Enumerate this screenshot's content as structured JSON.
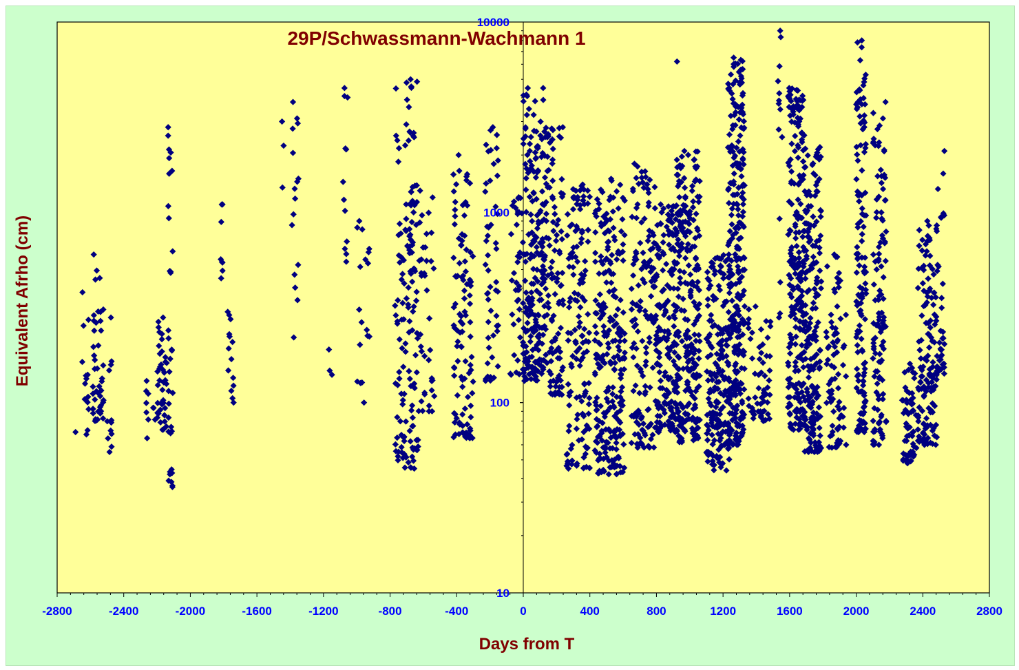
{
  "chart_data": {
    "type": "scatter",
    "title": "29P/Schwassmann-Wachmann  1",
    "xlabel": "Days from T",
    "ylabel": "Equivalent Afrho (cm)",
    "xlim": [
      -2800,
      2800
    ],
    "ylim": [
      10,
      10000
    ],
    "y_scale": "log",
    "x_ticks": [
      -2800,
      -2400,
      -2000,
      -1600,
      -1200,
      -800,
      -400,
      0,
      400,
      800,
      1200,
      1600,
      2000,
      2400,
      2800
    ],
    "y_ticks": [
      10,
      100,
      1000,
      10000
    ],
    "grid": false,
    "legend": "none",
    "marker": "diamond",
    "colors": {
      "plot_background": "#ffff99",
      "chart_background": "#ccffcc",
      "marker": "#000080",
      "title_text": "#800000",
      "axis_label_text": "#800000",
      "tick_label_text": "#0000ff"
    },
    "series": [
      {
        "clusters": [
          {
            "x": -2680,
            "x_spread": 10,
            "y_min": 70,
            "y_max": 70,
            "n": 1
          },
          {
            "x": -2630,
            "x_spread": 20,
            "y_min": 68,
            "y_max": 380,
            "n": 14
          },
          {
            "x": -2555,
            "x_spread": 35,
            "y_min": 80,
            "y_max": 600,
            "n": 45
          },
          {
            "x": -2485,
            "x_spread": 15,
            "y_min": 55,
            "y_max": 280,
            "n": 12
          },
          {
            "x": -2240,
            "x_spread": 30,
            "y_min": 65,
            "y_max": 130,
            "n": 10
          },
          {
            "x": -2170,
            "x_spread": 30,
            "y_min": 72,
            "y_max": 280,
            "n": 40
          },
          {
            "x": -2120,
            "x_spread": 15,
            "y_min": 36,
            "y_max": 2800,
            "n": 35
          },
          {
            "x": -1810,
            "x_spread": 12,
            "y_min": 450,
            "y_max": 1100,
            "n": 8
          },
          {
            "x": -1760,
            "x_spread": 20,
            "y_min": 100,
            "y_max": 300,
            "n": 14
          },
          {
            "x": -1440,
            "x_spread": 10,
            "y_min": 1350,
            "y_max": 3000,
            "n": 3
          },
          {
            "x": -1370,
            "x_spread": 20,
            "y_min": 220,
            "y_max": 3800,
            "n": 16
          },
          {
            "x": -1150,
            "x_spread": 20,
            "y_min": 140,
            "y_max": 190,
            "n": 3
          },
          {
            "x": -1070,
            "x_spread": 15,
            "y_min": 550,
            "y_max": 4500,
            "n": 12
          },
          {
            "x": -960,
            "x_spread": 40,
            "y_min": 100,
            "y_max": 900,
            "n": 18
          },
          {
            "x": -700,
            "x_spread": 70,
            "y_min": 45,
            "y_max": 5000,
            "n": 150
          },
          {
            "x": -580,
            "x_spread": 50,
            "y_min": 90,
            "y_max": 1300,
            "n": 40
          },
          {
            "x": -360,
            "x_spread": 60,
            "y_min": 65,
            "y_max": 2000,
            "n": 110
          },
          {
            "x": -190,
            "x_spread": 40,
            "y_min": 130,
            "y_max": 2800,
            "n": 50
          },
          {
            "x": -40,
            "x_spread": 40,
            "y_min": 140,
            "y_max": 1200,
            "n": 40
          },
          {
            "x": 60,
            "x_spread": 60,
            "y_min": 130,
            "y_max": 4500,
            "n": 200
          },
          {
            "x": 180,
            "x_spread": 60,
            "y_min": 110,
            "y_max": 2800,
            "n": 130
          },
          {
            "x": 330,
            "x_spread": 70,
            "y_min": 45,
            "y_max": 1400,
            "n": 150
          },
          {
            "x": 520,
            "x_spread": 90,
            "y_min": 42,
            "y_max": 1500,
            "n": 260
          },
          {
            "x": 720,
            "x_spread": 70,
            "y_min": 58,
            "y_max": 1800,
            "n": 150
          },
          {
            "x": 860,
            "x_spread": 70,
            "y_min": 70,
            "y_max": 1100,
            "n": 200
          },
          {
            "x": 990,
            "x_spread": 70,
            "y_min": 62,
            "y_max": 2100,
            "n": 260
          },
          {
            "x": 920,
            "x_spread": 5,
            "y_min": 6200,
            "y_max": 6200,
            "n": 1
          },
          {
            "x": 1170,
            "x_spread": 70,
            "y_min": 44,
            "y_max": 600,
            "n": 200
          },
          {
            "x": 1280,
            "x_spread": 50,
            "y_min": 60,
            "y_max": 6500,
            "n": 300
          },
          {
            "x": 1420,
            "x_spread": 70,
            "y_min": 80,
            "y_max": 320,
            "n": 60
          },
          {
            "x": 1540,
            "x_spread": 15,
            "y_min": 280,
            "y_max": 9000,
            "n": 14
          },
          {
            "x": 1640,
            "x_spread": 50,
            "y_min": 72,
            "y_max": 4500,
            "n": 230
          },
          {
            "x": 1740,
            "x_spread": 50,
            "y_min": 55,
            "y_max": 2200,
            "n": 200
          },
          {
            "x": 1880,
            "x_spread": 60,
            "y_min": 58,
            "y_max": 600,
            "n": 80
          },
          {
            "x": 2030,
            "x_spread": 30,
            "y_min": 70,
            "y_max": 8000,
            "n": 140
          },
          {
            "x": 2140,
            "x_spread": 40,
            "y_min": 60,
            "y_max": 3800,
            "n": 120
          },
          {
            "x": 2320,
            "x_spread": 45,
            "y_min": 48,
            "y_max": 160,
            "n": 60
          },
          {
            "x": 2430,
            "x_spread": 60,
            "y_min": 60,
            "y_max": 900,
            "n": 140
          },
          {
            "x": 2505,
            "x_spread": 25,
            "y_min": 140,
            "y_max": 2100,
            "n": 40
          }
        ]
      }
    ]
  }
}
